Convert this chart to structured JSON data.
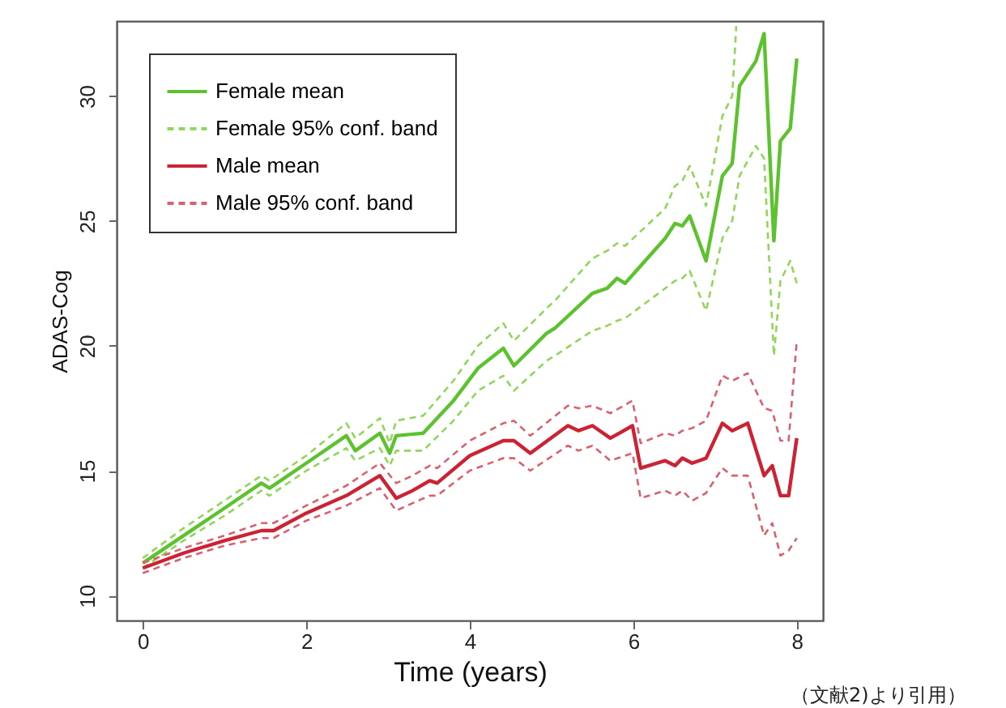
{
  "chart_data": {
    "type": "line",
    "xlabel": "Time (years)",
    "ylabel": "ADAS-Cog",
    "xlim": [
      -0.32,
      8.32
    ],
    "ylim": [
      9,
      33
    ],
    "xticks": [
      0,
      2,
      4,
      6,
      8
    ],
    "yticks": [
      10,
      15,
      20,
      25,
      30
    ],
    "grid": false,
    "legend": "top left",
    "annotations": [
      "（文献2)より引用）"
    ],
    "series": [
      {
        "name": "Female mean",
        "color": "#5cc22e",
        "line_style": "solid",
        "x": [
          0,
          0.5,
          1.0,
          1.45,
          1.55,
          2.0,
          2.49,
          2.6,
          2.9,
          3.02,
          3.1,
          3.43,
          3.8,
          4.1,
          4.41,
          4.54,
          4.94,
          5.04,
          5.5,
          5.68,
          5.8,
          5.9,
          6.39,
          6.51,
          6.6,
          6.69,
          6.89,
          7.09,
          7.21,
          7.3,
          7.5,
          7.6,
          7.72,
          7.8,
          7.92,
          8.0
        ],
        "values": [
          11.3,
          12.4,
          13.5,
          14.5,
          14.3,
          15.3,
          16.4,
          15.8,
          16.5,
          15.7,
          16.4,
          16.5,
          17.8,
          19.1,
          19.9,
          19.2,
          20.5,
          20.7,
          22.1,
          22.3,
          22.7,
          22.5,
          24.3,
          24.9,
          24.8,
          25.2,
          23.4,
          26.8,
          27.3,
          30.4,
          31.4,
          32.5,
          24.2,
          28.2,
          28.7,
          31.5
        ]
      },
      {
        "name": "Female 95% conf. band",
        "color": "#8fd65a",
        "line_style": "dashed",
        "x": [
          0,
          0.5,
          1.0,
          1.45,
          1.55,
          2.0,
          2.49,
          2.6,
          2.9,
          3.02,
          3.1,
          3.43,
          3.8,
          4.1,
          4.41,
          4.54,
          4.94,
          5.04,
          5.5,
          5.68,
          5.8,
          5.9,
          6.39,
          6.51,
          6.6,
          6.69,
          6.89,
          7.09,
          7.21,
          7.26
        ],
        "values": [
          11.5,
          12.7,
          13.8,
          14.8,
          14.6,
          15.6,
          16.9,
          16.3,
          17.1,
          16.1,
          17.0,
          17.2,
          18.6,
          20.0,
          20.9,
          20.2,
          21.5,
          21.8,
          23.5,
          23.8,
          24.1,
          24.0,
          25.5,
          26.4,
          26.6,
          27.2,
          25.6,
          29.2,
          30.0,
          32.8
        ]
      },
      {
        "color": "#8fd65a",
        "line_style": "dashed",
        "x": [
          0,
          0.5,
          1.0,
          1.45,
          1.55,
          2.0,
          2.49,
          2.6,
          2.9,
          3.02,
          3.1,
          3.43,
          3.8,
          4.1,
          4.41,
          4.54,
          4.94,
          5.04,
          5.5,
          5.68,
          5.8,
          5.9,
          6.39,
          6.51,
          6.6,
          6.69,
          6.89,
          7.09,
          7.21,
          7.3,
          7.5,
          7.6,
          7.72,
          7.8,
          7.92,
          8.0
        ],
        "values": [
          11.1,
          12.2,
          13.2,
          14.2,
          14.0,
          15.0,
          15.9,
          15.4,
          15.9,
          15.2,
          15.8,
          15.8,
          17.0,
          18.2,
          18.8,
          18.2,
          19.4,
          19.6,
          20.6,
          20.8,
          21.0,
          21.1,
          22.3,
          22.6,
          22.7,
          23.0,
          21.4,
          24.3,
          25.0,
          26.8,
          28.0,
          27.5,
          19.6,
          22.6,
          23.4,
          22.5
        ]
      },
      {
        "name": "Male mean",
        "color": "#cc2233",
        "line_style": "solid",
        "x": [
          0,
          0.5,
          1.0,
          1.45,
          1.6,
          2.0,
          2.49,
          2.9,
          3.1,
          3.3,
          3.51,
          3.6,
          4.0,
          4.41,
          4.54,
          4.74,
          5.2,
          5.33,
          5.5,
          5.72,
          5.99,
          6.09,
          6.39,
          6.51,
          6.6,
          6.72,
          6.89,
          7.09,
          7.21,
          7.4,
          7.6,
          7.7,
          7.8,
          7.9,
          8.0
        ],
        "values": [
          11.1,
          11.7,
          12.2,
          12.6,
          12.6,
          13.3,
          14.0,
          14.8,
          13.9,
          14.2,
          14.6,
          14.5,
          15.6,
          16.2,
          16.2,
          15.7,
          16.8,
          16.6,
          16.8,
          16.3,
          16.8,
          15.1,
          15.4,
          15.2,
          15.5,
          15.3,
          15.5,
          16.9,
          16.6,
          16.9,
          14.8,
          15.2,
          14.0,
          14.0,
          16.3
        ]
      },
      {
        "name": "Male 95% conf. band",
        "color": "#d9606e",
        "line_style": "dashed",
        "x": [
          0,
          0.5,
          1.0,
          1.45,
          1.6,
          2.0,
          2.49,
          2.9,
          3.1,
          3.3,
          3.51,
          3.6,
          4.0,
          4.41,
          4.54,
          4.74,
          5.2,
          5.33,
          5.5,
          5.72,
          5.99,
          6.09,
          6.39,
          6.51,
          6.6,
          6.72,
          6.89,
          7.09,
          7.21,
          7.4,
          7.6,
          7.7,
          7.8,
          7.9,
          8.0
        ],
        "values": [
          11.3,
          11.9,
          12.4,
          12.9,
          12.9,
          13.6,
          14.4,
          15.3,
          14.5,
          14.8,
          15.2,
          15.1,
          16.2,
          16.9,
          17.0,
          16.4,
          17.6,
          17.5,
          17.6,
          17.3,
          17.8,
          16.1,
          16.5,
          16.4,
          16.6,
          16.7,
          17.0,
          18.8,
          18.6,
          18.9,
          17.5,
          17.4,
          16.2,
          16.2,
          20.2
        ]
      },
      {
        "color": "#d9606e",
        "line_style": "dashed",
        "x": [
          0,
          0.5,
          1.0,
          1.45,
          1.6,
          2.0,
          2.49,
          2.9,
          3.1,
          3.3,
          3.51,
          3.6,
          4.0,
          4.41,
          4.54,
          4.74,
          5.2,
          5.33,
          5.5,
          5.72,
          5.99,
          6.09,
          6.39,
          6.51,
          6.6,
          6.72,
          6.89,
          7.09,
          7.21,
          7.4,
          7.6,
          7.7,
          7.8,
          7.9,
          8.0
        ],
        "values": [
          10.9,
          11.5,
          12.0,
          12.3,
          12.3,
          13.0,
          13.6,
          14.3,
          13.4,
          13.7,
          14.0,
          14.0,
          15.0,
          15.5,
          15.5,
          15.0,
          16.0,
          15.8,
          16.0,
          15.4,
          15.7,
          13.9,
          14.2,
          14.0,
          14.2,
          13.8,
          14.1,
          15.1,
          14.8,
          14.8,
          12.4,
          12.9,
          11.6,
          11.8,
          12.3
        ]
      }
    ]
  }
}
